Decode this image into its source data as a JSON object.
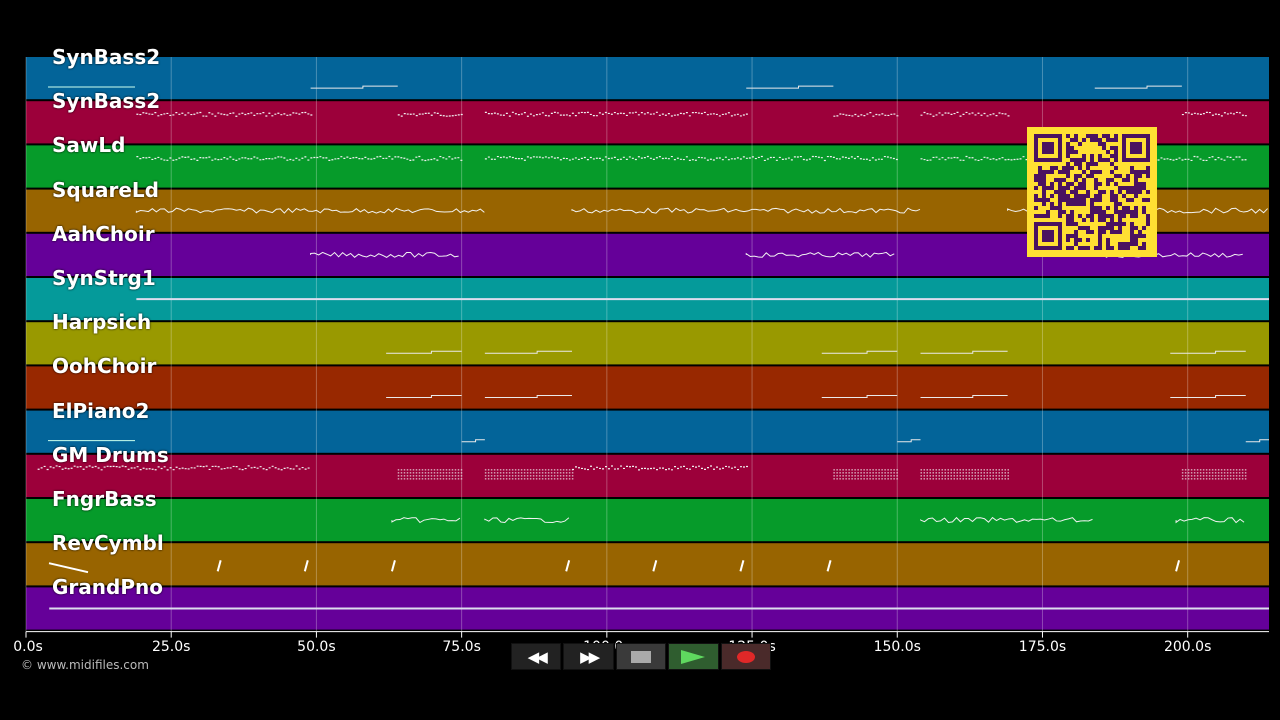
{
  "tracks": [
    {
      "name": "SynBass2",
      "color": "#036499"
    },
    {
      "name": "SynBass2",
      "color": "#9c003a"
    },
    {
      "name": "SawLd",
      "color": "#069b2a"
    },
    {
      "name": "SquareLd",
      "color": "#986400"
    },
    {
      "name": "AahChoir",
      "color": "#650099"
    },
    {
      "name": "SynStrg1",
      "color": "#059a9a"
    },
    {
      "name": "Harpsich",
      "color": "#999900"
    },
    {
      "name": "OohChoir",
      "color": "#982800"
    },
    {
      "name": "ElPiano2",
      "color": "#036499"
    },
    {
      "name": "GM Drums",
      "color": "#9c003a"
    },
    {
      "name": "FngrBass",
      "color": "#069b2a"
    },
    {
      "name": "RevCymbl",
      "color": "#986400"
    },
    {
      "name": "GrandPno",
      "color": "#650099"
    }
  ],
  "time_axis": {
    "ticks": [
      {
        "value": 0,
        "label": "0.0s"
      },
      {
        "value": 25,
        "label": "25.0s"
      },
      {
        "value": 50,
        "label": "50.0s"
      },
      {
        "value": 75,
        "label": "75.0s"
      },
      {
        "value": 100,
        "label": "100.0s"
      },
      {
        "value": 125,
        "label": "125.0s"
      },
      {
        "value": 150,
        "label": "150.0s"
      },
      {
        "value": 175,
        "label": "175.0s"
      },
      {
        "value": 200,
        "label": "200.0s"
      }
    ],
    "max_seconds": 214
  },
  "copyright": "© www.midifiles.com",
  "transport": {
    "rewind_label": "◀◀",
    "forward_label": "▶▶",
    "stop": "stop-icon",
    "play": "play-icon",
    "record": "record-icon"
  },
  "note_segments": [
    {
      "track": 0,
      "start": 49,
      "end": 64,
      "style": "line"
    },
    {
      "track": 0,
      "start": 124,
      "end": 139,
      "style": "line"
    },
    {
      "track": 0,
      "start": 184,
      "end": 199,
      "style": "line"
    },
    {
      "track": 1,
      "start": 19,
      "end": 49,
      "style": "dots"
    },
    {
      "track": 1,
      "start": 64,
      "end": 75,
      "style": "dots"
    },
    {
      "track": 1,
      "start": 79,
      "end": 124,
      "style": "dots"
    },
    {
      "track": 1,
      "start": 139,
      "end": 150,
      "style": "dots"
    },
    {
      "track": 1,
      "start": 154,
      "end": 169,
      "style": "dots"
    },
    {
      "track": 1,
      "start": 199,
      "end": 210,
      "style": "dots"
    },
    {
      "track": 2,
      "start": 19,
      "end": 75,
      "style": "dots"
    },
    {
      "track": 2,
      "start": 79,
      "end": 150,
      "style": "dots"
    },
    {
      "track": 2,
      "start": 154,
      "end": 210,
      "style": "dots"
    },
    {
      "track": 3,
      "start": 19,
      "end": 79,
      "style": "wave"
    },
    {
      "track": 3,
      "start": 94,
      "end": 154,
      "style": "wave"
    },
    {
      "track": 3,
      "start": 169,
      "end": 214,
      "style": "wave"
    },
    {
      "track": 4,
      "start": 49,
      "end": 75,
      "style": "wave"
    },
    {
      "track": 4,
      "start": 124,
      "end": 150,
      "style": "wave"
    },
    {
      "track": 4,
      "start": 184,
      "end": 210,
      "style": "wave"
    },
    {
      "track": 5,
      "start": 19,
      "end": 214,
      "style": "sustain"
    },
    {
      "track": 6,
      "start": 62,
      "end": 75,
      "style": "line"
    },
    {
      "track": 6,
      "start": 79,
      "end": 94,
      "style": "line"
    },
    {
      "track": 6,
      "start": 137,
      "end": 150,
      "style": "line"
    },
    {
      "track": 6,
      "start": 154,
      "end": 169,
      "style": "line"
    },
    {
      "track": 6,
      "start": 197,
      "end": 210,
      "style": "line"
    },
    {
      "track": 7,
      "start": 62,
      "end": 75,
      "style": "line"
    },
    {
      "track": 7,
      "start": 79,
      "end": 94,
      "style": "line"
    },
    {
      "track": 7,
      "start": 137,
      "end": 150,
      "style": "line"
    },
    {
      "track": 7,
      "start": 154,
      "end": 169,
      "style": "line"
    },
    {
      "track": 7,
      "start": 197,
      "end": 210,
      "style": "line"
    },
    {
      "track": 8,
      "start": 75,
      "end": 79,
      "style": "line"
    },
    {
      "track": 8,
      "start": 150,
      "end": 154,
      "style": "line"
    },
    {
      "track": 8,
      "start": 210,
      "end": 214,
      "style": "line"
    },
    {
      "track": 9,
      "start": 2,
      "end": 49,
      "style": "dots"
    },
    {
      "track": 9,
      "start": 64,
      "end": 75,
      "style": "drums"
    },
    {
      "track": 9,
      "start": 79,
      "end": 94,
      "style": "drums"
    },
    {
      "track": 9,
      "start": 94,
      "end": 124,
      "style": "dots"
    },
    {
      "track": 9,
      "start": 139,
      "end": 150,
      "style": "drums"
    },
    {
      "track": 9,
      "start": 154,
      "end": 169,
      "style": "drums"
    },
    {
      "track": 9,
      "start": 199,
      "end": 210,
      "style": "drums"
    },
    {
      "track": 10,
      "start": 63,
      "end": 75,
      "style": "wave"
    },
    {
      "track": 10,
      "start": 79,
      "end": 94,
      "style": "wave"
    },
    {
      "track": 10,
      "start": 154,
      "end": 184,
      "style": "wave"
    },
    {
      "track": 10,
      "start": 198,
      "end": 210,
      "style": "wave"
    },
    {
      "track": 12,
      "start": 4,
      "end": 214,
      "style": "sustain"
    }
  ],
  "cymbal_hits": [
    33,
    48,
    63,
    93,
    108,
    123,
    138,
    198
  ]
}
